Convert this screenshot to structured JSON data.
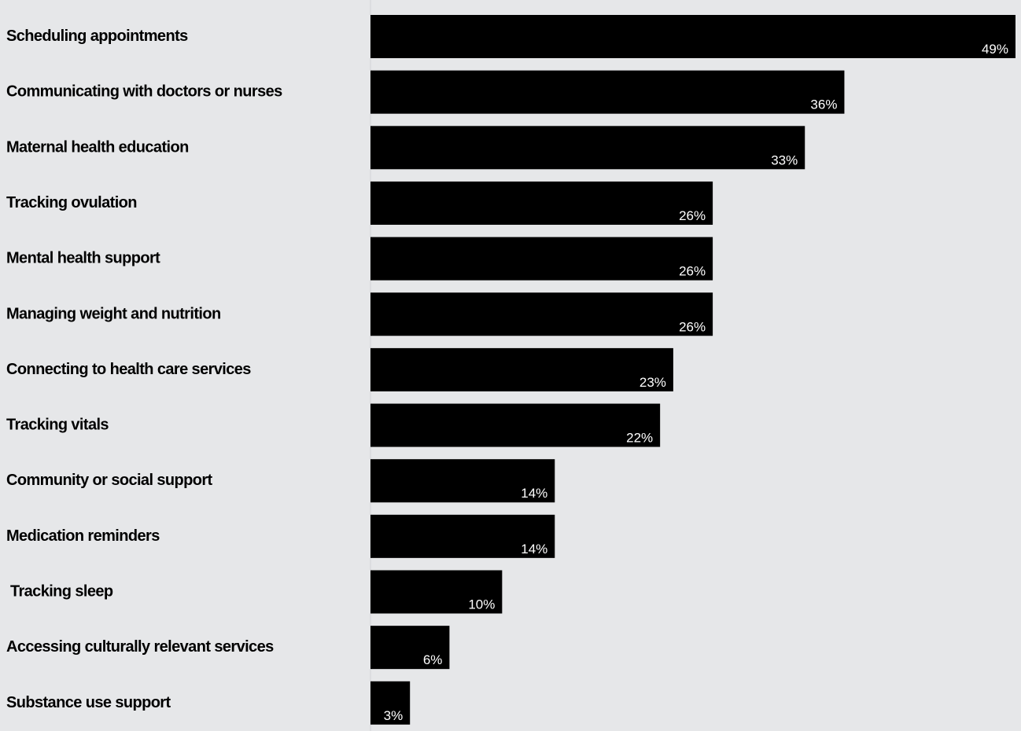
{
  "chart_data": {
    "type": "bar",
    "orientation": "horizontal",
    "title": "",
    "xlabel": "",
    "ylabel": "",
    "categories": [
      "Scheduling appointments",
      "Communicating with doctors or nurses",
      "Maternal health education",
      "Tracking ovulation",
      "Mental health support",
      "Managing weight and nutrition",
      "Connecting to health care services",
      "Tracking vitals",
      "Community or social support",
      "Medication reminders",
      " Tracking sleep",
      "Accessing culturally relevant services",
      "Substance use support"
    ],
    "values": [
      49,
      36,
      33,
      26,
      26,
      26,
      23,
      22,
      14,
      14,
      10,
      6,
      3
    ],
    "value_labels": [
      "49%",
      "36%",
      "33%",
      "26%",
      "26%",
      "26%",
      "23%",
      "22%",
      "14%",
      "14%",
      "10%",
      "6%",
      "3%"
    ],
    "xlim": [
      0,
      49
    ],
    "grid": false,
    "legend": "none",
    "colors": {
      "background": "#e6e7e9",
      "bar": "#000000",
      "value_label": "#ffffff",
      "category_label": "#000000",
      "axis_line": "#d2d3d6"
    }
  }
}
